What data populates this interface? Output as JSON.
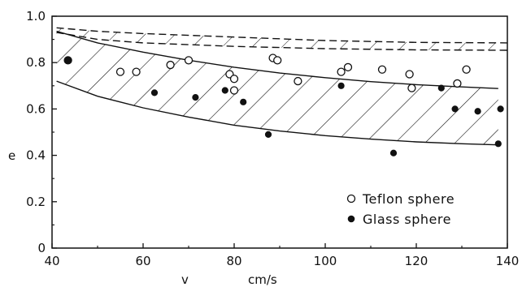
{
  "chart_data": {
    "type": "scatter",
    "xlabel": "v",
    "xunit": "cm/s",
    "ylabel": "e",
    "xlim": [
      40,
      140
    ],
    "ylim": [
      0,
      1.0
    ],
    "xticks": [
      40,
      60,
      80,
      100,
      120,
      140
    ],
    "yticks": [
      0,
      0.2,
      0.4,
      0.6,
      0.8,
      1.0
    ],
    "xtick_labels": [
      "40",
      "60",
      "80",
      "100",
      "120",
      "140"
    ],
    "ytick_labels": [
      "0",
      "0.2",
      "0.4",
      "0.6",
      "0.8",
      "1.0"
    ],
    "grid": false,
    "legend_position": "bottom-right",
    "series": [
      {
        "name": "Teflon sphere",
        "marker": "open-circle",
        "points": [
          [
            43.5,
            0.81
          ],
          [
            55,
            0.76
          ],
          [
            58.5,
            0.76
          ],
          [
            66,
            0.79
          ],
          [
            70,
            0.81
          ],
          [
            79,
            0.75
          ],
          [
            80,
            0.73
          ],
          [
            80,
            0.68
          ],
          [
            88.5,
            0.82
          ],
          [
            89.5,
            0.81
          ],
          [
            94,
            0.72
          ],
          [
            103.5,
            0.76
          ],
          [
            105,
            0.78
          ],
          [
            112.5,
            0.77
          ],
          [
            118.5,
            0.75
          ],
          [
            119,
            0.69
          ],
          [
            129,
            0.71
          ],
          [
            131,
            0.77
          ]
        ]
      },
      {
        "name": "Glass sphere",
        "marker": "filled-circle",
        "points": [
          [
            43.5,
            0.81
          ],
          [
            62.5,
            0.67
          ],
          [
            71.5,
            0.65
          ],
          [
            78,
            0.68
          ],
          [
            82,
            0.63
          ],
          [
            87.5,
            0.49
          ],
          [
            103.5,
            0.7
          ],
          [
            115,
            0.41
          ],
          [
            125.5,
            0.69
          ],
          [
            128.5,
            0.6
          ],
          [
            133.5,
            0.59
          ],
          [
            138,
            0.45
          ],
          [
            138.5,
            0.6
          ]
        ]
      }
    ],
    "curves": {
      "teflon_band_upper": [
        [
          41,
          0.95
        ],
        [
          50,
          0.935
        ],
        [
          60,
          0.925
        ],
        [
          80,
          0.91
        ],
        [
          100,
          0.895
        ],
        [
          120,
          0.887
        ],
        [
          140,
          0.885
        ]
      ],
      "teflon_band_lower": [
        [
          41,
          0.93
        ],
        [
          50,
          0.9
        ],
        [
          60,
          0.885
        ],
        [
          80,
          0.87
        ],
        [
          100,
          0.86
        ],
        [
          120,
          0.855
        ],
        [
          140,
          0.853
        ]
      ],
      "glass_band_upper": [
        [
          41,
          0.935
        ],
        [
          50,
          0.885
        ],
        [
          60,
          0.845
        ],
        [
          70,
          0.81
        ],
        [
          80,
          0.78
        ],
        [
          90,
          0.755
        ],
        [
          100,
          0.735
        ],
        [
          110,
          0.718
        ],
        [
          120,
          0.705
        ],
        [
          130,
          0.695
        ],
        [
          138,
          0.688
        ]
      ],
      "glass_band_lower": [
        [
          41,
          0.72
        ],
        [
          50,
          0.655
        ],
        [
          60,
          0.605
        ],
        [
          70,
          0.565
        ],
        [
          80,
          0.53
        ],
        [
          90,
          0.505
        ],
        [
          100,
          0.485
        ],
        [
          110,
          0.47
        ],
        [
          120,
          0.458
        ],
        [
          130,
          0.45
        ],
        [
          138,
          0.445
        ]
      ]
    }
  }
}
